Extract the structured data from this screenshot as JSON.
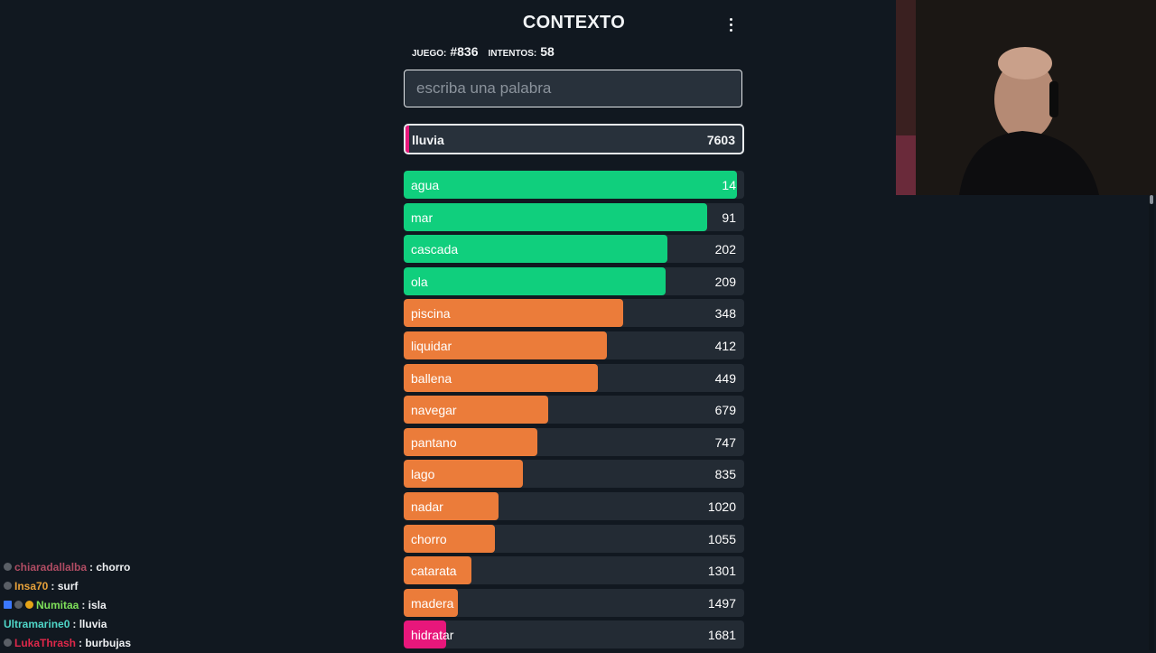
{
  "app": {
    "title": "CONTEXTO",
    "game_label": "JUEGO:",
    "game_value": "#836",
    "attempts_label": "INTENTOS:",
    "attempts_value": "58",
    "search_placeholder": "escriba una palabra",
    "current": {
      "word": "lluvia",
      "rank": "7603"
    }
  },
  "colors": {
    "green": "#10cf7d",
    "orange": "#eb7c3a",
    "pink": "#e8177b",
    "track": "#232b34"
  },
  "guesses": [
    {
      "word": "agua",
      "rank": "14",
      "fill": 0.98,
      "color": "green"
    },
    {
      "word": "mar",
      "rank": "91",
      "fill": 0.89,
      "color": "green"
    },
    {
      "word": "cascada",
      "rank": "202",
      "fill": 0.775,
      "color": "green"
    },
    {
      "word": "ola",
      "rank": "209",
      "fill": 0.77,
      "color": "green"
    },
    {
      "word": "piscina",
      "rank": "348",
      "fill": 0.645,
      "color": "orange"
    },
    {
      "word": "liquidar",
      "rank": "412",
      "fill": 0.597,
      "color": "orange"
    },
    {
      "word": "ballena",
      "rank": "449",
      "fill": 0.57,
      "color": "orange"
    },
    {
      "word": "navegar",
      "rank": "679",
      "fill": 0.425,
      "color": "orange"
    },
    {
      "word": "pantano",
      "rank": "747",
      "fill": 0.392,
      "color": "orange"
    },
    {
      "word": "lago",
      "rank": "835",
      "fill": 0.35,
      "color": "orange"
    },
    {
      "word": "nadar",
      "rank": "1020",
      "fill": 0.278,
      "color": "orange"
    },
    {
      "word": "chorro",
      "rank": "1055",
      "fill": 0.268,
      "color": "orange"
    },
    {
      "word": "catarata",
      "rank": "1301",
      "fill": 0.198,
      "color": "orange"
    },
    {
      "word": "madera",
      "rank": "1497",
      "fill": 0.16,
      "color": "orange"
    },
    {
      "word": "hidratar",
      "rank": "1681",
      "fill": 0.125,
      "color": "pink"
    }
  ],
  "chat": [
    {
      "user": "chiaradallalba",
      "color": "#b04c63",
      "message": ": chorro",
      "badges": [
        "gray"
      ]
    },
    {
      "user": "Insa70",
      "color": "#e8a23a",
      "message": ": surf",
      "badges": [
        "gray"
      ]
    },
    {
      "user": "Numitaa",
      "color": "#7ee05a",
      "message": ": isla",
      "badges": [
        "blue",
        "gray",
        "gold"
      ]
    },
    {
      "user": "Ultramarine0",
      "color": "#4fd6c8",
      "message": ": lluvia",
      "badges": []
    },
    {
      "user": "LukaThrash",
      "color": "#e0284a",
      "message": ": burbujas",
      "badges": [
        "gray"
      ]
    }
  ]
}
